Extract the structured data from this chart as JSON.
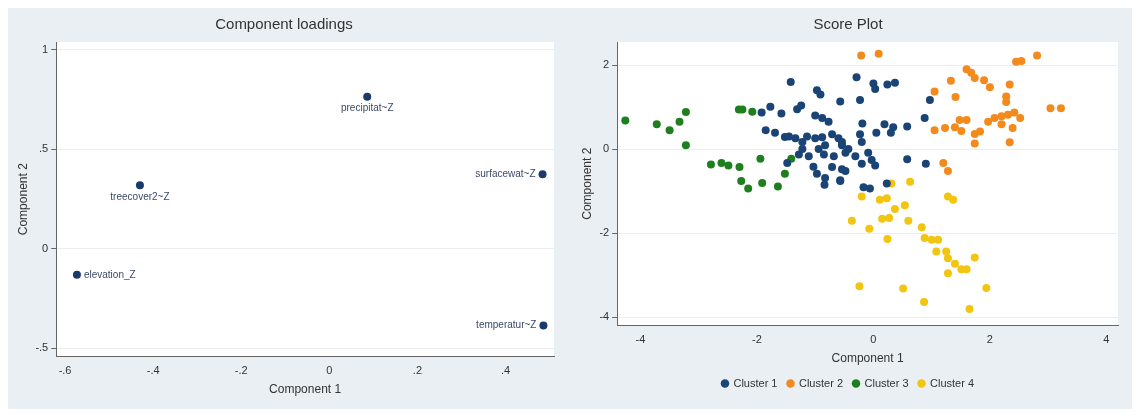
{
  "chart_data": [
    {
      "type": "scatter",
      "title": "Component loadings",
      "xlabel": "Component 1",
      "ylabel": "Component 2",
      "marker": "circle",
      "grid": "y",
      "xlim": [
        -0.62,
        0.51
      ],
      "ylim": [
        -0.54,
        1.04
      ],
      "xticks": [
        {
          "value": -0.6,
          "label": "-.6"
        },
        {
          "value": -0.4,
          "label": "-.4"
        },
        {
          "value": -0.2,
          "label": "-.2"
        },
        0,
        {
          "value": 0.2,
          "label": ".2"
        },
        {
          "value": 0.4,
          "label": ".4"
        }
      ],
      "yticks": [
        {
          "value": -0.5,
          "label": "-.5"
        },
        0,
        {
          "value": 0.5,
          "label": ".5"
        },
        1
      ],
      "series": [
        {
          "color": "#1a3a6b",
          "x": [
            0.086,
            -0.43,
            0.484,
            -0.573,
            0.486
          ],
          "values": [
            0.765,
            0.32,
            0.375,
            -0.13,
            -0.385
          ]
        }
      ],
      "annotations": [
        {
          "text": "precipitat~Z",
          "x": 0.086,
          "y": 0.765
        },
        {
          "text": "treecover2~Z",
          "x": -0.43,
          "y": 0.32
        },
        {
          "text": "surfacewat~Z",
          "x": 0.484,
          "y": 0.375
        },
        {
          "text": "elevation_Z",
          "x": -0.573,
          "y": -0.13
        },
        {
          "text": "temperatur~Z",
          "x": 0.486,
          "y": -0.385
        }
      ]
    },
    {
      "type": "scatter",
      "title": "Score Plot",
      "xlabel": "Component 1",
      "ylabel": "Component 2",
      "marker": "circle",
      "grid": "y",
      "legend": "bottom",
      "xlim": [
        -4.4,
        4.2
      ],
      "ylim": [
        -4.2,
        2.55
      ],
      "xticks": [
        -4,
        -2,
        0,
        2,
        4
      ],
      "yticks": [
        -4,
        -2,
        0,
        2
      ],
      "series": [
        {
          "name": "Cluster 1",
          "color": "#1a4476",
          "x": [
            -1.42,
            -1.92,
            -1.77,
            -1.58,
            -1.85,
            -1.69,
            -1.52,
            -1.45,
            -1.31,
            -1.24,
            -0.97,
            -0.91,
            -1.0,
            -0.88,
            -0.77,
            -0.57,
            -1.34,
            -1.22,
            -1.14,
            -1.0,
            -0.88,
            -0.71,
            -0.6,
            -1.22,
            -1.28,
            -1.11,
            -0.94,
            -0.83,
            -0.85,
            -0.68,
            -0.54,
            -0.48,
            -1.48,
            -1.03,
            -0.97,
            -0.83,
            -0.84,
            -0.71,
            -0.57,
            -0.48,
            -0.29,
            0.0,
            0.03,
            0.24,
            0.37,
            -0.23,
            0.97,
            0.88,
            -0.19,
            0.19,
            0.34,
            0.3,
            0.05,
            0.58,
            -0.23,
            -0.54,
            -0.43,
            -0.2,
            -0.09,
            -0.31,
            -0.03,
            0.03,
            -0.54,
            -0.2,
            -0.57,
            0.58,
            0.9,
            -0.17,
            -0.06,
            0.23
          ],
          "values": [
            1.6,
            0.87,
            1.01,
            0.85,
            0.45,
            0.39,
            0.29,
            0.3,
            0.95,
            1.04,
            1.4,
            1.3,
            0.8,
            0.74,
            0.65,
            1.13,
            0.26,
            0.17,
            0.3,
            0.26,
            0.28,
            0.35,
            0.26,
            0.0,
            -0.13,
            -0.17,
            0.0,
            0.09,
            -0.13,
            -0.17,
            0.09,
            -0.09,
            -0.33,
            -0.42,
            -0.59,
            -0.69,
            -0.85,
            -0.43,
            -0.74,
            -0.52,
            1.71,
            1.56,
            1.43,
            1.54,
            1.58,
            1.17,
            1.17,
            0.74,
            0.61,
            0.59,
            0.52,
            0.39,
            0.39,
            0.54,
            0.35,
            0.17,
            0.0,
            0.17,
            -0.09,
            -0.17,
            -0.26,
            -0.39,
            -0.48,
            -0.35,
            -0.76,
            -0.24,
            -0.35,
            -0.91,
            -0.94,
            -0.82
          ]
        },
        {
          "name": "Cluster 2",
          "color": "#f28a1e",
          "x": [
            -0.21,
            0.09,
            1.05,
            1.33,
            1.41,
            1.6,
            1.68,
            1.74,
            1.9,
            2.0,
            2.34,
            2.28,
            2.28,
            2.45,
            2.54,
            2.81,
            3.04,
            3.22,
            1.05,
            1.23,
            1.4,
            1.48,
            1.6,
            1.51,
            1.74,
            1.83,
            1.74,
            1.97,
            2.08,
            2.2,
            2.31,
            2.42,
            2.52,
            2.2,
            2.39,
            2.34,
            1.2,
            1.28
          ],
          "values": [
            2.23,
            2.27,
            1.37,
            1.63,
            1.24,
            1.9,
            1.82,
            1.69,
            1.64,
            1.47,
            1.54,
            1.25,
            1.12,
            2.08,
            2.1,
            2.23,
            0.97,
            0.97,
            0.45,
            0.5,
            0.52,
            0.69,
            0.69,
            0.43,
            0.36,
            0.42,
            0.13,
            0.65,
            0.74,
            0.78,
            0.82,
            0.87,
            0.74,
            0.59,
            0.5,
            0.16,
            -0.33,
            -0.52
          ]
        },
        {
          "name": "Cluster 3",
          "color": "#1f7f1f",
          "x": [
            -4.26,
            -3.72,
            -3.5,
            -3.33,
            -3.22,
            -3.22,
            -2.79,
            -2.61,
            -2.49,
            -2.3,
            -2.31,
            -2.25,
            -2.08,
            -2.27,
            -2.15,
            -1.94,
            -1.91,
            -1.64,
            -1.52,
            -1.41
          ],
          "values": [
            0.68,
            0.59,
            0.45,
            0.65,
            0.88,
            0.09,
            -0.37,
            -0.33,
            -0.39,
            -0.43,
            0.94,
            0.94,
            0.89,
            -0.76,
            -0.94,
            -0.23,
            -0.81,
            -0.89,
            -0.59,
            -0.23
          ]
        },
        {
          "name": "Cluster 4",
          "color": "#f2c511",
          "x": [
            0.31,
            0.63,
            -0.2,
            0.11,
            0.23,
            0.37,
            0.54,
            1.28,
            1.37,
            -0.37,
            0.15,
            0.27,
            0.6,
            -0.07,
            0.24,
            0.83,
            0.88,
            1.0,
            1.11,
            1.08,
            1.25,
            1.28,
            1.4,
            1.51,
            1.6,
            1.74,
            1.28,
            -0.24,
            0.51,
            0.87,
            1.65,
            1.94
          ],
          "values": [
            -0.82,
            -0.78,
            -1.13,
            -1.21,
            -1.17,
            -1.43,
            -1.34,
            -1.13,
            -1.21,
            -1.71,
            -1.66,
            -1.64,
            -1.71,
            -1.9,
            -2.14,
            -1.86,
            -2.12,
            -2.16,
            -2.16,
            -2.44,
            -2.44,
            -2.6,
            -2.73,
            -2.86,
            -2.86,
            -2.58,
            -2.96,
            -3.27,
            -3.32,
            -3.64,
            -3.81,
            -3.31
          ]
        }
      ]
    }
  ]
}
